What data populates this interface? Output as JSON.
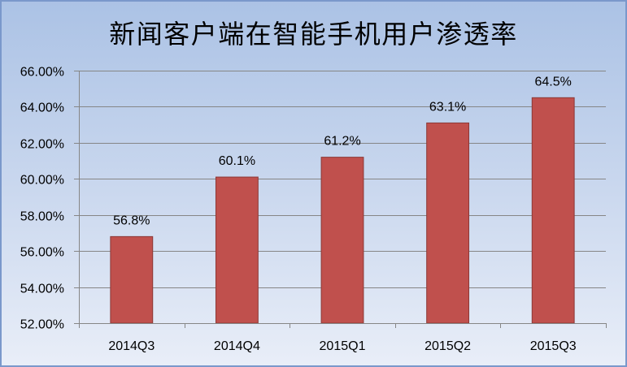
{
  "colors": {
    "bar": "#c0504d",
    "bar_border": "#8c3836",
    "grid": "#868686",
    "axis": "#868686"
  },
  "chart_data": {
    "type": "bar",
    "title": "新闻客户端在智能手机用户渗透率",
    "categories": [
      "2014Q3",
      "2014Q4",
      "2015Q1",
      "2015Q2",
      "2015Q3"
    ],
    "values": [
      56.8,
      60.1,
      61.2,
      63.1,
      64.5
    ],
    "data_labels": [
      "56.8%",
      "60.1%",
      "61.2%",
      "63.1%",
      "64.5%"
    ],
    "ylim": [
      52,
      66
    ],
    "yticks": [
      52,
      54,
      56,
      58,
      60,
      62,
      64,
      66
    ],
    "ytick_labels": [
      "52.00%",
      "54.00%",
      "56.00%",
      "58.00%",
      "60.00%",
      "62.00%",
      "64.00%",
      "66.00%"
    ],
    "xlabel": "",
    "ylabel": "",
    "grid": true,
    "legend": false
  }
}
